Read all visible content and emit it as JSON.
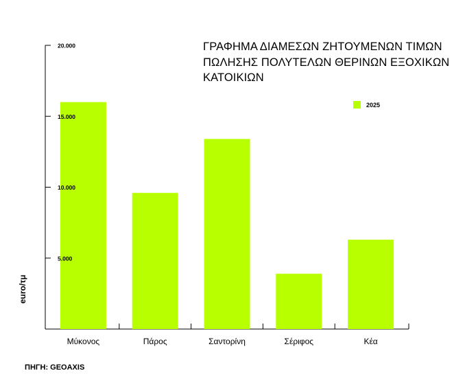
{
  "chart_data": {
    "type": "bar",
    "title_lines": [
      "ΓΡΑΦΗΜΑ ΔΙΑΜΕΣΩΝ ΖΗΤΟΥΜΕΝΩΝ ΤΙΜΩΝ",
      "ΠΩΛΗΣΗΣ ΠΟΛΥΤΕΛΩΝ ΘΕΡΙΝΩΝ ΕΞΟΧΙΚΩΝ",
      "ΚΑΤΟΙΚΙΩΝ"
    ],
    "ylabel": "euro/τμ",
    "categories": [
      "Μύκονος",
      "Πάρος",
      "Σαντορίνη",
      "Σέριφος",
      "Κέα"
    ],
    "series": [
      {
        "name": "2025",
        "values": [
          16000,
          9600,
          13400,
          3900,
          6300
        ],
        "color": "#b8ff00"
      }
    ],
    "yticks": [
      {
        "value": 5000,
        "label": "5.000"
      },
      {
        "value": 10000,
        "label": "10.000"
      },
      {
        "value": 15000,
        "label": "15.000"
      },
      {
        "value": 20000,
        "label": "20.000"
      }
    ],
    "ylim": [
      0,
      20000
    ],
    "grid": false,
    "legend_position": "top-right"
  },
  "source": "ΠΗΓΗ: GEOAXIS"
}
